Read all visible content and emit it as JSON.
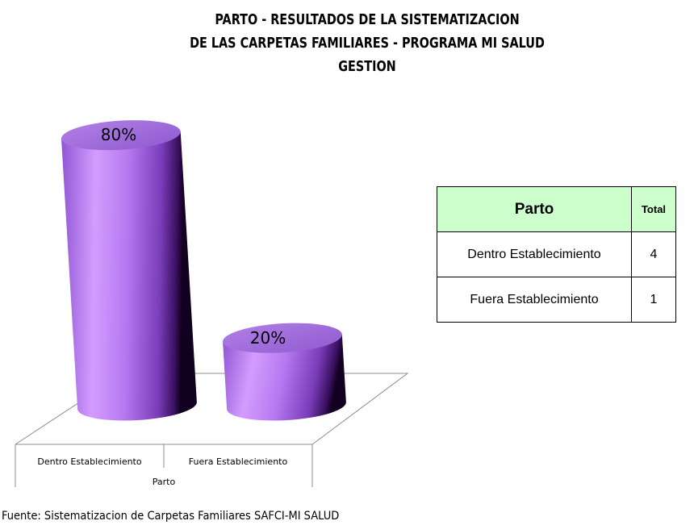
{
  "chart_data": {
    "type": "bar",
    "title_lines": [
      "PARTO - RESULTADOS DE LA SISTEMATIZACION",
      "DE LAS CARPETAS FAMILIARES - PROGRAMA MI SALUD",
      "GESTION"
    ],
    "categories": [
      "Dentro Establecimiento",
      "Fuera Establecimiento"
    ],
    "values": [
      80,
      20
    ],
    "data_labels": [
      "80%",
      "20%"
    ],
    "xlabel": "Parto",
    "ylim": [
      0,
      100
    ],
    "bar_color": "#b57ff2",
    "bar_style": "3d-cylinder",
    "grid": false,
    "legend": "none"
  },
  "table": {
    "header": [
      "Parto",
      "Total"
    ],
    "rows": [
      [
        "Dentro Establecimiento",
        "4"
      ],
      [
        "Fuera Establecimiento",
        "1"
      ]
    ]
  },
  "source": "Fuente: Sistematizacion de Carpetas Familiares SAFCI-MI SALUD"
}
